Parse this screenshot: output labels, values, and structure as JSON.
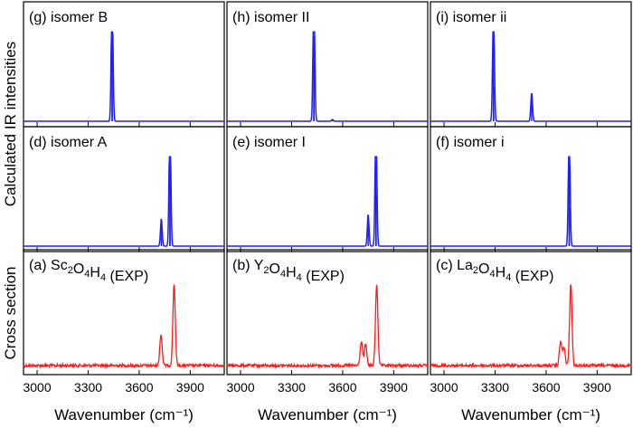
{
  "figure": {
    "y_title_calc": "Calculated IR intensities",
    "y_title_exp": "Cross section",
    "x_title": "Wavenumber (cm⁻¹)",
    "x_ticks": [
      "3000",
      "3300",
      "3600",
      "3900"
    ]
  },
  "chart_data": [
    {
      "id": "g",
      "type": "line",
      "label": "(g) isomer B",
      "row": 0,
      "col": 0,
      "color": "#1f1fff",
      "xlim": [
        2920,
        4100
      ],
      "peaks": [
        {
          "x": 3440,
          "y": 1.0
        },
        {
          "x": 3442,
          "y": 0.63
        }
      ]
    },
    {
      "id": "h",
      "type": "line",
      "label": "(h) isomer II",
      "row": 0,
      "col": 1,
      "color": "#1f1fff",
      "xlim": [
        2920,
        4100
      ],
      "peaks": [
        {
          "x": 3430,
          "y": 1.0
        },
        {
          "x": 3432,
          "y": 0.7
        },
        {
          "x": 3540,
          "y": 0.02
        }
      ]
    },
    {
      "id": "i",
      "type": "line",
      "label": "(i) isomer ii",
      "row": 0,
      "col": 2,
      "color": "#1f1fff",
      "xlim": [
        2920,
        4100
      ],
      "peaks": [
        {
          "x": 3290,
          "y": 1.0
        },
        {
          "x": 3292,
          "y": 0.4
        },
        {
          "x": 3515,
          "y": 0.33
        }
      ]
    },
    {
      "id": "d",
      "type": "line",
      "label": "(d) isomer A",
      "row": 1,
      "col": 0,
      "color": "#1f1fff",
      "xlim": [
        2920,
        4100
      ],
      "peaks": [
        {
          "x": 3730,
          "y": 0.32
        },
        {
          "x": 3780,
          "y": 1.0
        },
        {
          "x": 3782,
          "y": 0.6
        }
      ]
    },
    {
      "id": "e",
      "type": "line",
      "label": "(e) isomer I",
      "row": 1,
      "col": 1,
      "color": "#1f1fff",
      "xlim": [
        2920,
        4100
      ],
      "peaks": [
        {
          "x": 3750,
          "y": 0.37
        },
        {
          "x": 3795,
          "y": 1.0
        },
        {
          "x": 3797,
          "y": 0.6
        }
      ]
    },
    {
      "id": "f",
      "type": "line",
      "label": "(f) isomer i",
      "row": 1,
      "col": 2,
      "color": "#1f1fff",
      "xlim": [
        2920,
        4100
      ],
      "peaks": [
        {
          "x": 3735,
          "y": 1.0
        },
        {
          "x": 3737,
          "y": 0.45
        }
      ]
    },
    {
      "id": "a",
      "type": "line",
      "label": "(a) Sc₂O₄H₄ (EXP)",
      "row": 2,
      "col": 0,
      "color": "#ff1a1a",
      "xlim": [
        2920,
        4100
      ],
      "peaks": [
        {
          "x": 3728,
          "y": 0.38
        },
        {
          "x": 3805,
          "y": 1.0
        }
      ]
    },
    {
      "id": "b",
      "type": "line",
      "label": "(b) Y₂O₄H₄ (EXP)",
      "row": 2,
      "col": 1,
      "color": "#ff1a1a",
      "xlim": [
        2920,
        4100
      ],
      "peaks": [
        {
          "x": 3710,
          "y": 0.3
        },
        {
          "x": 3735,
          "y": 0.26
        },
        {
          "x": 3800,
          "y": 1.0
        }
      ]
    },
    {
      "id": "c",
      "type": "line",
      "label": "(c) La₂O₄H₄ (EXP)",
      "row": 2,
      "col": 2,
      "color": "#ff1a1a",
      "xlim": [
        2920,
        4100
      ],
      "peaks": [
        {
          "x": 3685,
          "y": 0.3
        },
        {
          "x": 3705,
          "y": 0.22
        },
        {
          "x": 3745,
          "y": 1.0
        }
      ]
    }
  ]
}
